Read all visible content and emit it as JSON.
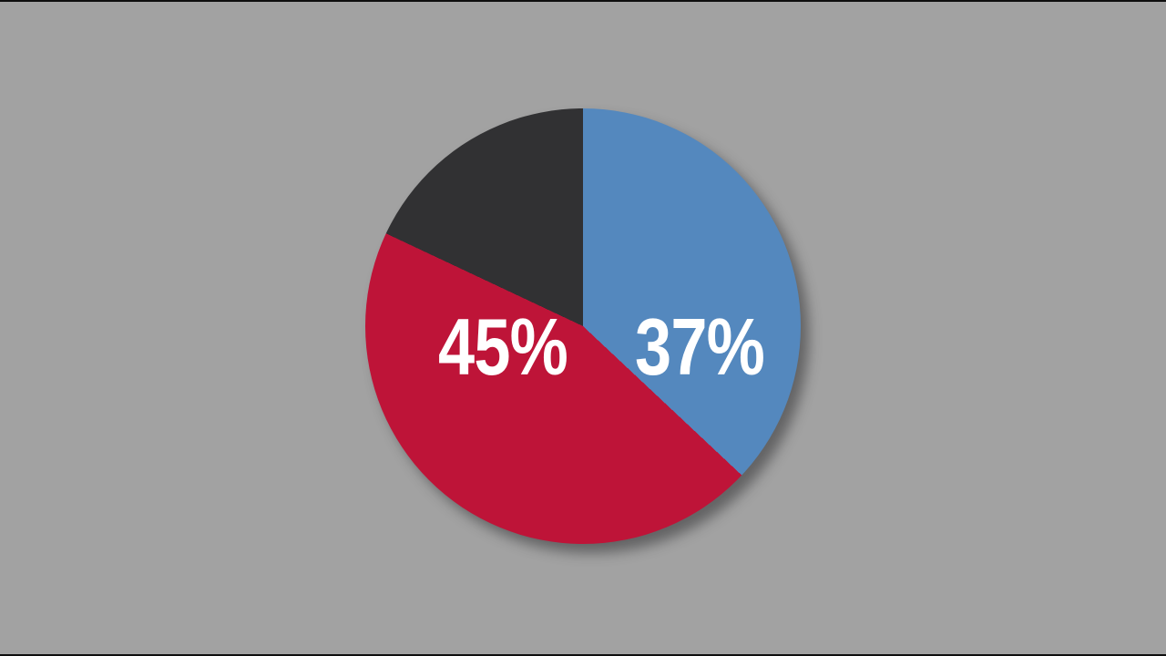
{
  "page": {
    "background_color": "#a2a2a2",
    "letterbox_color": "#0f0f0f",
    "label_text_color": "#ffffff"
  },
  "chart_data": {
    "type": "pie",
    "title": "",
    "legend": "none",
    "start_angle_deg": 0,
    "direction": "clockwise",
    "total": 100,
    "slices": [
      {
        "name": "blue-slice",
        "label": "37%",
        "value": 37,
        "color": "#5488be"
      },
      {
        "name": "red-slice",
        "label": "45%",
        "value": 45,
        "color": "#be1438"
      },
      {
        "name": "dark-slice",
        "label": "",
        "value": 18,
        "color": "#313133"
      }
    ],
    "layout_hints": {
      "labels_inside_slices": true,
      "shadow": "soft drop shadow offset lower-right"
    }
  }
}
